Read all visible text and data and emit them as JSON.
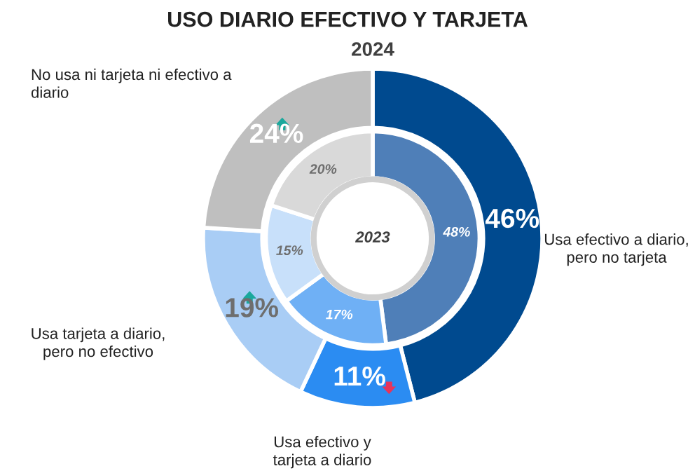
{
  "chart_data": {
    "type": "donut",
    "title": "USO DIARIO EFECTIVO Y TARJETA",
    "categories": [
      "Usa efectivo a diario,\npero no tarjeta",
      "Usa efectivo y\ntarjeta a diario",
      "Usa tarjeta a diario,\npero no efectivo",
      "No usa ni tarjeta ni efectivo a\ndiario"
    ],
    "series": [
      {
        "name": "2024",
        "values": [
          46,
          11,
          19,
          24
        ],
        "colors": [
          "#004a8f",
          "#2b8cf2",
          "#a9cdf5",
          "#bfbfbf"
        ],
        "value_labels": [
          "46%",
          "11%",
          "19%",
          "24%"
        ]
      },
      {
        "name": "2023",
        "values": [
          48,
          17,
          15,
          20
        ],
        "colors": [
          "#4f7fb8",
          "#6fb0f5",
          "#c8e0fa",
          "#d9d9d9"
        ],
        "value_labels": [
          "48%",
          "17%",
          "15%",
          "20%"
        ]
      }
    ]
  }
}
